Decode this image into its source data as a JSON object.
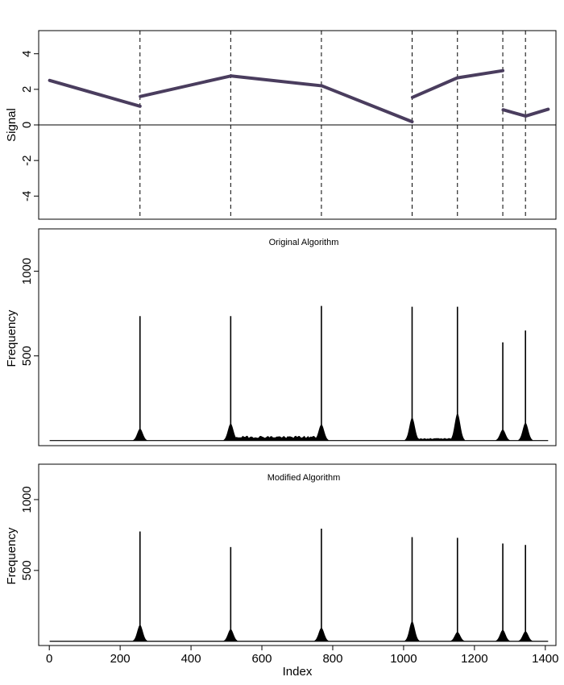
{
  "colors": {
    "signal": "#4a3d5e",
    "bars": "#000000",
    "axis": "#000000",
    "background": "#ffffff"
  },
  "chart_data": [
    {
      "type": "line",
      "title": "",
      "xlabel": "",
      "ylabel": "Signal",
      "xlim": [
        -30,
        1430
      ],
      "ylim": [
        -5.3,
        5.3
      ],
      "yticks": [
        -4,
        -2,
        0,
        2,
        4
      ],
      "ytick_labels": [
        "-4",
        "-2",
        "0",
        "2",
        "4"
      ],
      "hline": 0,
      "changepoints": [
        256,
        512,
        768,
        1024,
        1152,
        1280,
        1344
      ],
      "segments": [
        {
          "x": [
            1,
            256
          ],
          "y": [
            2.5,
            1.05
          ]
        },
        {
          "x": [
            257,
            512
          ],
          "y": [
            1.6,
            2.75
          ]
        },
        {
          "x": [
            513,
            768
          ],
          "y": [
            2.75,
            2.2
          ]
        },
        {
          "x": [
            769,
            1024
          ],
          "y": [
            2.2,
            0.18
          ]
        },
        {
          "x": [
            1025,
            1152
          ],
          "y": [
            1.55,
            2.65
          ]
        },
        {
          "x": [
            1153,
            1280
          ],
          "y": [
            2.65,
            3.05
          ]
        },
        {
          "x": [
            1281,
            1344
          ],
          "y": [
            0.85,
            0.5
          ]
        },
        {
          "x": [
            1345,
            1408
          ],
          "y": [
            0.5,
            0.88
          ]
        }
      ]
    },
    {
      "type": "bar",
      "title": "Original Algorithm",
      "xlabel": "",
      "ylabel": "Frequency",
      "xlim": [
        -30,
        1430
      ],
      "ylim": [
        -30,
        1250
      ],
      "yticks": [
        500,
        1000
      ],
      "ytick_labels": [
        "500",
        "1000"
      ],
      "peaks": [
        {
          "x": 256,
          "height": 735,
          "base": 70
        },
        {
          "x": 512,
          "height": 735,
          "base": 100
        },
        {
          "x": 768,
          "height": 795,
          "base": 95
        },
        {
          "x": 1024,
          "height": 790,
          "base": 135
        },
        {
          "x": 1152,
          "height": 790,
          "base": 160
        },
        {
          "x": 1280,
          "height": 580,
          "base": 65
        },
        {
          "x": 1344,
          "height": 650,
          "base": 105
        }
      ],
      "noise_regions": [
        {
          "from": 512,
          "to": 768,
          "level": 22
        },
        {
          "from": 1024,
          "to": 1152,
          "level": 12
        }
      ]
    },
    {
      "type": "bar",
      "title": "Modified Algorithm",
      "xlabel": "Index",
      "ylabel": "Frequency",
      "xlim": [
        -30,
        1430
      ],
      "ylim": [
        -30,
        1250
      ],
      "yticks": [
        500,
        1000
      ],
      "ytick_labels": [
        "500",
        "1000"
      ],
      "xticks": [
        0,
        200,
        400,
        600,
        800,
        1000,
        1200,
        1400
      ],
      "xtick_labels": [
        "0",
        "200",
        "400",
        "600",
        "800",
        "1000",
        "1200",
        "1400"
      ],
      "peaks": [
        {
          "x": 256,
          "height": 775,
          "base": 115
        },
        {
          "x": 512,
          "height": 665,
          "base": 85
        },
        {
          "x": 768,
          "height": 795,
          "base": 95
        },
        {
          "x": 1024,
          "height": 735,
          "base": 140
        },
        {
          "x": 1152,
          "height": 730,
          "base": 65
        },
        {
          "x": 1280,
          "height": 690,
          "base": 80
        },
        {
          "x": 1344,
          "height": 680,
          "base": 70
        }
      ],
      "noise_regions": []
    }
  ]
}
